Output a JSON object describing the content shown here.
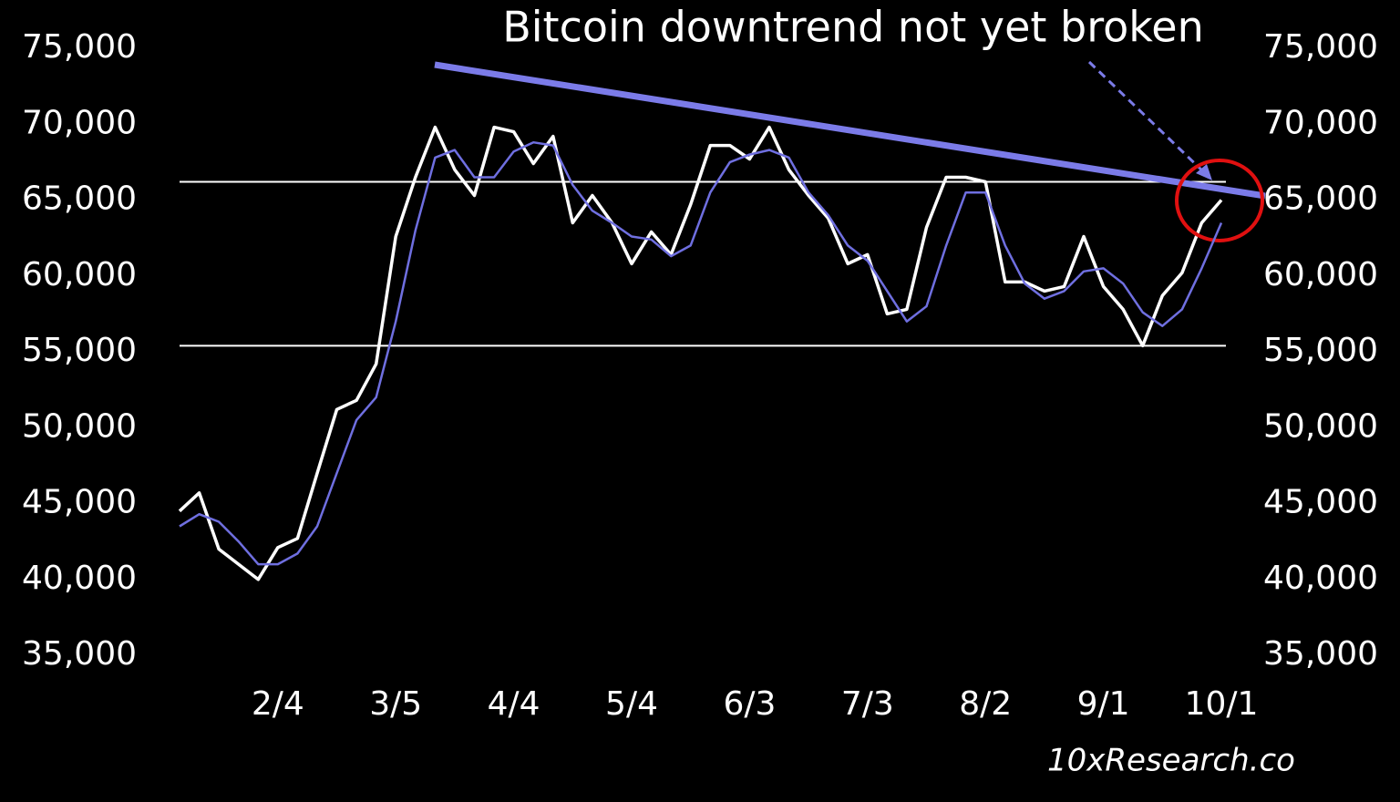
{
  "chart_data": {
    "type": "line",
    "title": "Bitcoin downtrend not yet broken",
    "source": "10xResearch.co",
    "categories": [
      null,
      null,
      null,
      null,
      null,
      "2/4",
      null,
      null,
      null,
      null,
      null,
      "3/5",
      null,
      null,
      null,
      null,
      null,
      "4/4",
      null,
      null,
      null,
      null,
      null,
      "5/4",
      null,
      null,
      null,
      null,
      null,
      "6/3",
      null,
      null,
      null,
      null,
      null,
      "7/3",
      null,
      null,
      null,
      null,
      null,
      "8/2",
      null,
      null,
      null,
      null,
      null,
      "9/1",
      null,
      null,
      null,
      null,
      null,
      "10/1"
    ],
    "series": [
      {
        "color": "#ffffff",
        "values": [
          44500,
          45700,
          42000,
          41000,
          40000,
          42100,
          42700,
          47000,
          51200,
          51800,
          54200,
          62600,
          66500,
          69800,
          67000,
          65300,
          69800,
          69500,
          67400,
          69200,
          63500,
          65300,
          63500,
          60800,
          62900,
          61400,
          64700,
          68600,
          68600,
          67700,
          69800,
          67000,
          65300,
          63800,
          60800,
          61400,
          57500,
          57800,
          63200,
          66500,
          66500,
          66200,
          59600,
          59600,
          59000,
          59300,
          62600,
          59300,
          57800,
          55400,
          58700,
          60200,
          63500,
          65000
        ]
      },
      {
        "color": "#6f6fe0",
        "values": [
          43500,
          44300,
          43800,
          42500,
          41000,
          41000,
          41700,
          43500,
          47000,
          50500,
          52000,
          57000,
          63000,
          67800,
          68300,
          66500,
          66500,
          68200,
          68800,
          68600,
          66000,
          64300,
          63500,
          62600,
          62400,
          61300,
          62000,
          65500,
          67500,
          68000,
          68300,
          67800,
          65500,
          64000,
          62000,
          61000,
          59000,
          57000,
          58000,
          62000,
          65500,
          65500,
          62000,
          59500,
          58500,
          59000,
          60300,
          60500,
          59500,
          57600,
          56700,
          57800,
          60500,
          63500
        ]
      }
    ],
    "levels": [
      66200,
      55400
    ],
    "level_color": "#ffffff",
    "ylim": [
      35000,
      75000
    ],
    "yticks": [
      {
        "value": 35000,
        "label": "35,000"
      },
      {
        "value": 40000,
        "label": "40,000"
      },
      {
        "value": 45000,
        "label": "45,000"
      },
      {
        "value": 50000,
        "label": "50,000"
      },
      {
        "value": 55000,
        "label": "55,000"
      },
      {
        "value": 60000,
        "label": "60,000"
      },
      {
        "value": 65000,
        "label": "65,000"
      },
      {
        "value": 70000,
        "label": "70,000"
      },
      {
        "value": 75000,
        "label": "75,000"
      }
    ],
    "y2lim": [
      35000,
      75000
    ],
    "y2ticks": [
      {
        "value": 35000,
        "label": "35,000"
      },
      {
        "value": 40000,
        "label": "40,000"
      },
      {
        "value": 45000,
        "label": "45,000"
      },
      {
        "value": 50000,
        "label": "50,000"
      },
      {
        "value": 55000,
        "label": "55,000"
      },
      {
        "value": 60000,
        "label": "60,000"
      },
      {
        "value": 65000,
        "label": "65,000"
      },
      {
        "value": 70000,
        "label": "70,000"
      },
      {
        "value": 75000,
        "label": "75,000"
      }
    ]
  }
}
